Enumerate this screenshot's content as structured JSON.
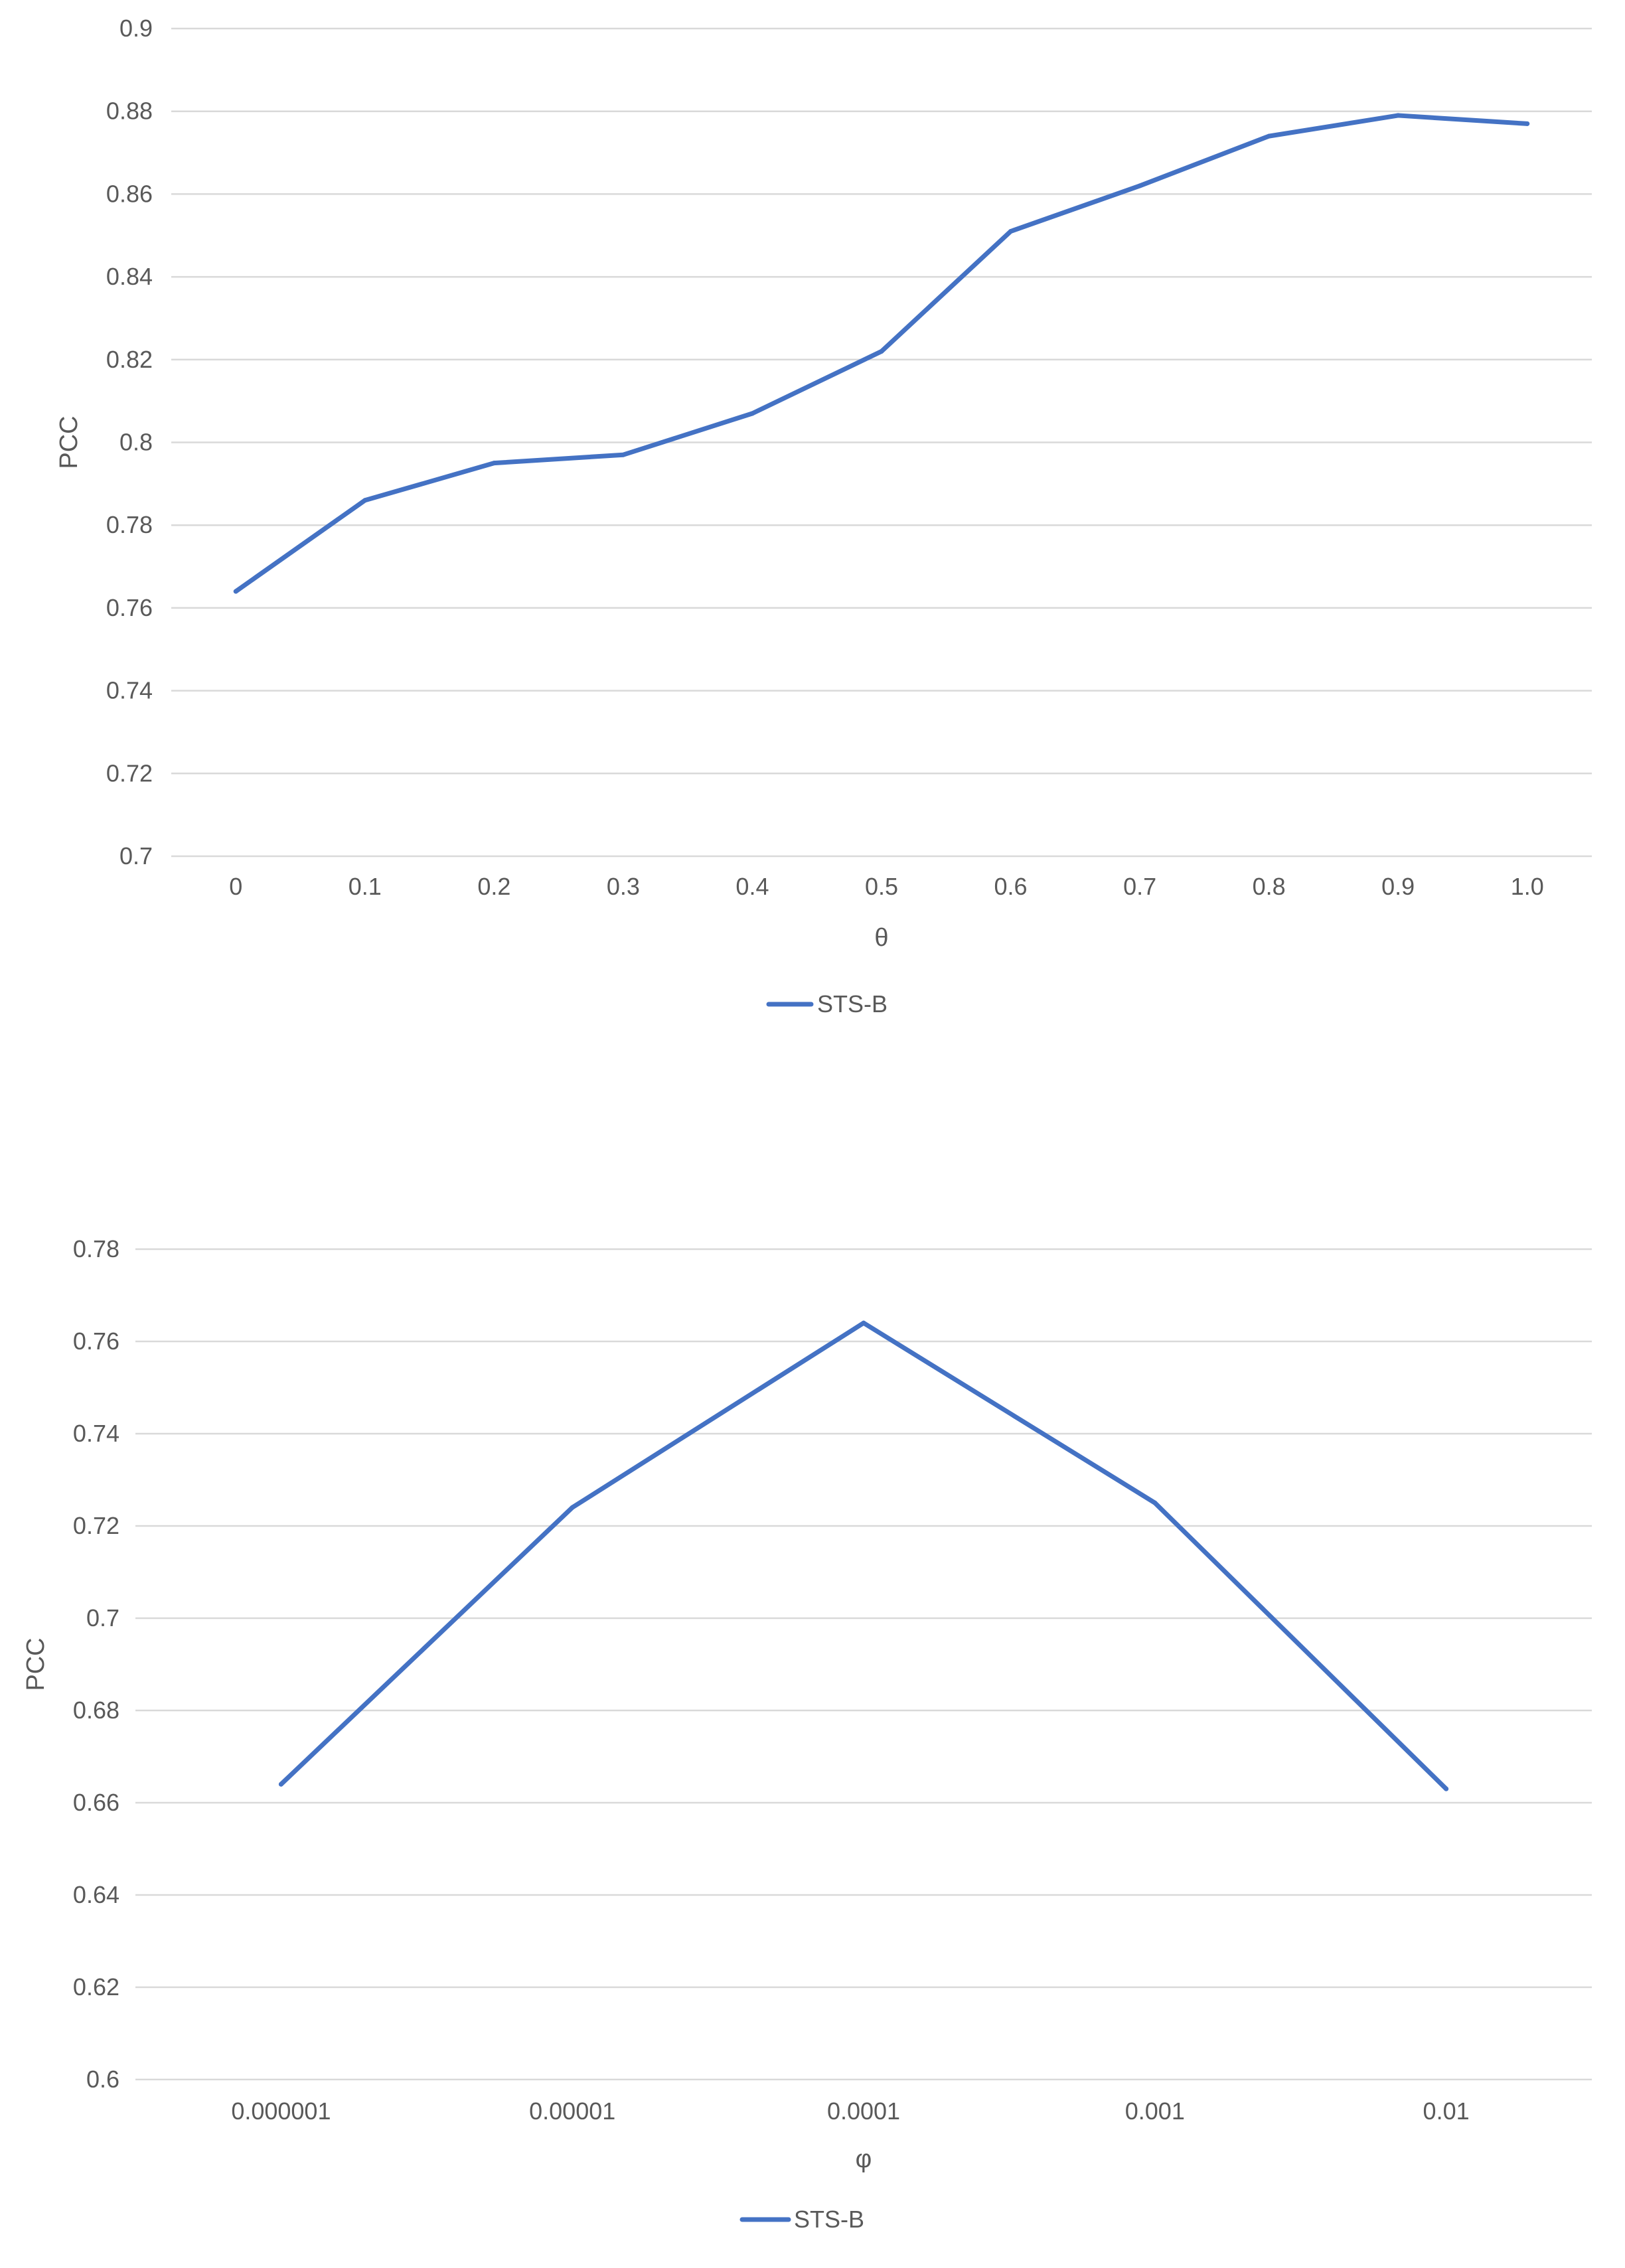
{
  "chart_data": [
    {
      "type": "line",
      "categories": [
        "0",
        "0.1",
        "0.2",
        "0.3",
        "0.4",
        "0.5",
        "0.6",
        "0.7",
        "0.8",
        "0.9",
        "1.0"
      ],
      "series": [
        {
          "name": "STS-B",
          "values": [
            0.764,
            0.786,
            0.795,
            0.797,
            0.807,
            0.822,
            0.851,
            0.862,
            0.874,
            0.879,
            0.877
          ]
        }
      ],
      "xlabel": "θ",
      "ylabel": "PCC",
      "ylim": [
        0.7,
        0.9
      ],
      "yticks": [
        "0.7",
        "0.72",
        "0.74",
        "0.76",
        "0.78",
        "0.8",
        "0.82",
        "0.84",
        "0.86",
        "0.88",
        "0.9"
      ],
      "grid": "horizontal",
      "legend": "bottom",
      "color": "#4472C4"
    },
    {
      "type": "line",
      "categories": [
        "0.000001",
        "0.00001",
        "0.0001",
        "0.001",
        "0.01"
      ],
      "series": [
        {
          "name": "STS-B",
          "values": [
            0.664,
            0.724,
            0.764,
            0.725,
            0.663
          ]
        }
      ],
      "xlabel": "φ",
      "ylabel": "PCC",
      "ylim": [
        0.6,
        0.78
      ],
      "yticks": [
        "0.6",
        "0.62",
        "0.64",
        "0.66",
        "0.68",
        "0.7",
        "0.72",
        "0.74",
        "0.76",
        "0.78"
      ],
      "grid": "horizontal",
      "legend": "bottom",
      "color": "#4472C4"
    }
  ]
}
